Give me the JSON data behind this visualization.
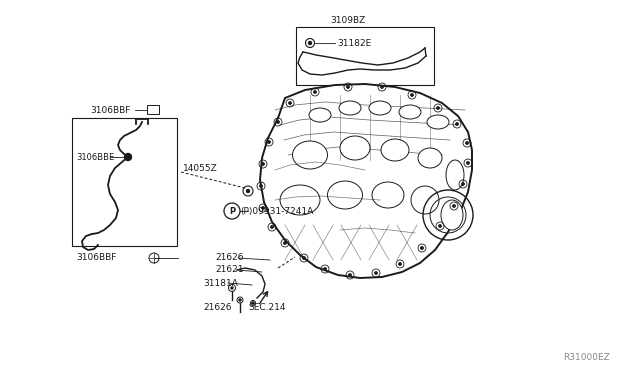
{
  "bg_color": "#ffffff",
  "diagram_id": "R31000EZ",
  "labels": {
    "3106BBF_top": "3106BBF",
    "3106BBE": "3106BBE",
    "3106BBF_bot": "3106BBF",
    "14055Z": "14055Z",
    "3109BZ": "3109BZ",
    "31182E": "31182E",
    "P_label": "(P)09931-7241A",
    "21626_top": "21626",
    "21621": "21621",
    "31181A": "31181A",
    "21626_bot": "21626",
    "SEC214": "SEC.214"
  },
  "lc": "#1a1a1a",
  "tc": "#1a1a1a",
  "fs": 6.5
}
